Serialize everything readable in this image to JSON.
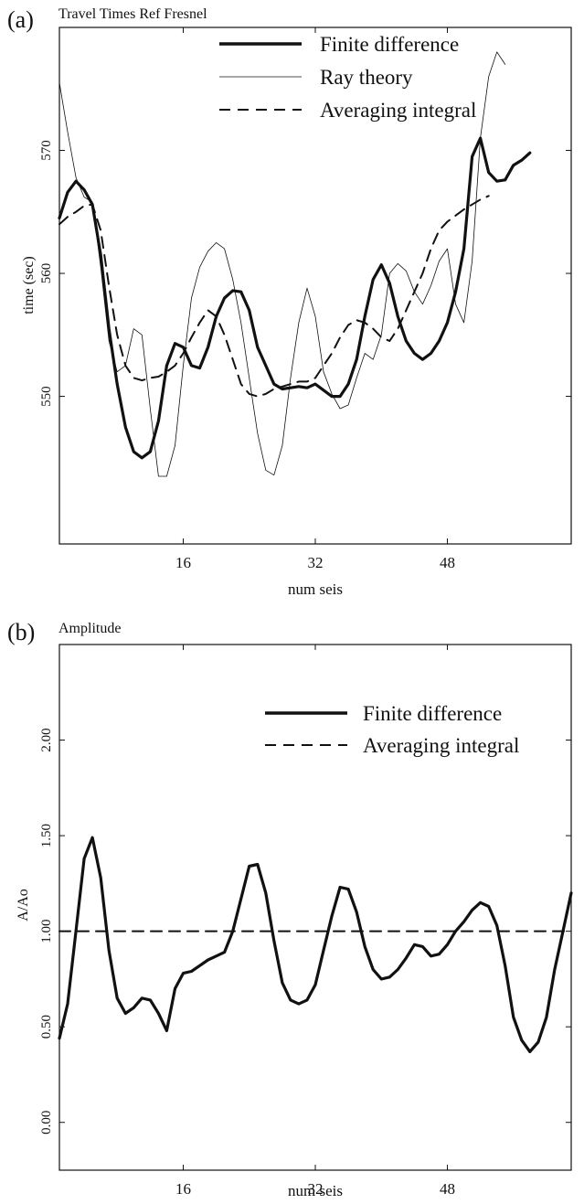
{
  "chart_data": [
    {
      "type": "line",
      "panel_label": "(a)",
      "title": "Travel Times  Ref Fresnel",
      "xlabel": "num seis",
      "ylabel": "time (sec)",
      "xlim": [
        1,
        63
      ],
      "ylim": [
        538,
        580
      ],
      "xticks": [
        16,
        32,
        48
      ],
      "yticks": [
        550,
        560,
        570
      ],
      "legend_position": "top-right",
      "series": [
        {
          "name": "Finite difference",
          "style": "thick-solid",
          "x": [
            1,
            2,
            3,
            4,
            5,
            6,
            7,
            8,
            9,
            10,
            11,
            12,
            13,
            14,
            15,
            16,
            17,
            18,
            19,
            20,
            21,
            22,
            23,
            24,
            25,
            26,
            27,
            28,
            29,
            30,
            31,
            32,
            33,
            34,
            35,
            36,
            37,
            38,
            39,
            40,
            41,
            42,
            43,
            44,
            45,
            46,
            47,
            48,
            49,
            50,
            51,
            52,
            53,
            54,
            55,
            56,
            57,
            58,
            59,
            60,
            61,
            62,
            63
          ],
          "values": [
            564.5,
            566.6,
            567.5,
            566.8,
            565.6,
            561.5,
            555.5,
            551.0,
            547.5,
            545.5,
            545.0,
            545.5,
            548.0,
            552.5,
            554.3,
            554.0,
            552.5,
            552.3,
            554.0,
            556.5,
            558.0,
            558.6,
            558.5,
            557.0,
            554.0,
            552.5,
            551.0,
            550.6,
            550.7,
            550.8,
            550.7,
            551.0,
            550.5,
            550.0,
            550.0,
            551.0,
            553.0,
            556.5,
            559.5,
            560.7,
            559.2,
            556.5,
            554.5,
            553.5,
            553.0,
            553.5,
            554.5,
            556.0,
            558.5,
            562.0,
            569.5,
            571.0,
            568.2,
            567.5,
            567.6,
            568.8,
            569.2,
            569.8,
            null,
            null,
            null,
            null,
            null
          ]
        },
        {
          "name": "Ray theory",
          "style": "thin-solid",
          "x": [
            1,
            2,
            3,
            4,
            5,
            6,
            7,
            8,
            9,
            10,
            11,
            12,
            13,
            14,
            15,
            16,
            17,
            18,
            19,
            20,
            21,
            22,
            23,
            24,
            25,
            26,
            27,
            28,
            29,
            30,
            31,
            32,
            33,
            34,
            35,
            36,
            37,
            38,
            39,
            40,
            41,
            42,
            43,
            44,
            45,
            46,
            47,
            48,
            49,
            50,
            51,
            52,
            53,
            54,
            55,
            56,
            57,
            58,
            59,
            60,
            61,
            62,
            63
          ],
          "values": [
            575.5,
            571.5,
            567.8,
            566.2,
            565.8,
            560.5,
            554.5,
            552.0,
            552.5,
            555.5,
            555.0,
            549.0,
            543.5,
            543.5,
            546.0,
            552.5,
            558.0,
            560.5,
            561.8,
            562.5,
            562.0,
            559.5,
            556.0,
            551.5,
            547.0,
            544.0,
            543.6,
            546.0,
            551.5,
            556.0,
            558.8,
            556.5,
            552.0,
            550.2,
            549.0,
            549.3,
            551.5,
            553.5,
            553.0,
            555.0,
            560.0,
            560.8,
            560.2,
            558.5,
            557.5,
            559.0,
            561.0,
            562.0,
            557.5,
            556.0,
            561.0,
            571.0,
            576.0,
            578.0,
            577.0,
            null,
            null,
            null,
            null,
            null,
            null,
            null,
            null
          ]
        },
        {
          "name": "Averaging integral",
          "style": "dashed",
          "x": [
            1,
            2,
            3,
            4,
            5,
            6,
            7,
            8,
            9,
            10,
            11,
            12,
            13,
            14,
            15,
            16,
            17,
            18,
            19,
            20,
            21,
            22,
            23,
            24,
            25,
            26,
            27,
            28,
            29,
            30,
            31,
            32,
            33,
            34,
            35,
            36,
            37,
            38,
            39,
            40,
            41,
            42,
            43,
            44,
            45,
            46,
            47,
            48,
            49,
            50,
            51,
            52,
            53,
            54,
            55,
            56,
            57,
            58,
            59,
            60,
            61,
            62,
            63
          ],
          "values": [
            564.0,
            564.6,
            565.0,
            565.5,
            565.6,
            563.5,
            559.0,
            555.0,
            552.5,
            551.5,
            551.3,
            551.5,
            551.6,
            552.0,
            552.5,
            553.5,
            554.8,
            556.0,
            557.0,
            556.5,
            555.0,
            553.0,
            551.0,
            550.2,
            550.0,
            550.2,
            550.6,
            550.8,
            551.0,
            551.2,
            551.2,
            551.5,
            552.5,
            553.5,
            554.8,
            555.8,
            556.2,
            556.0,
            555.5,
            554.8,
            554.5,
            555.5,
            557.0,
            558.5,
            560.0,
            562.0,
            563.5,
            564.2,
            564.7,
            565.2,
            565.6,
            566.0,
            566.3,
            null,
            null,
            null,
            null,
            null,
            null,
            null,
            null,
            null,
            null
          ]
        }
      ]
    },
    {
      "type": "line",
      "panel_label": "(b)",
      "title": "Amplitude",
      "xlabel": "num seis",
      "ylabel": "A/Ao",
      "xlim": [
        1,
        63
      ],
      "ylim": [
        -0.25,
        2.5
      ],
      "xticks": [
        16,
        32,
        48
      ],
      "yticks": [
        "0.00",
        "0.50",
        "1.00",
        "1.50",
        "2.00"
      ],
      "legend_position": "top-right",
      "series": [
        {
          "name": "Finite difference",
          "style": "thick-solid",
          "x": [
            1,
            2,
            3,
            4,
            5,
            6,
            7,
            8,
            9,
            10,
            11,
            12,
            13,
            14,
            15,
            16,
            17,
            18,
            19,
            20,
            21,
            22,
            23,
            24,
            25,
            26,
            27,
            28,
            29,
            30,
            31,
            32,
            33,
            34,
            35,
            36,
            37,
            38,
            39,
            40,
            41,
            42,
            43,
            44,
            45,
            46,
            47,
            48,
            49,
            50,
            51,
            52,
            53,
            54,
            55,
            56,
            57,
            58,
            59,
            60,
            61,
            62,
            63
          ],
          "values": [
            0.44,
            0.62,
            1.0,
            1.38,
            1.49,
            1.28,
            0.9,
            0.65,
            0.57,
            0.6,
            0.65,
            0.64,
            0.57,
            0.48,
            0.7,
            0.78,
            0.79,
            0.82,
            0.85,
            0.87,
            0.89,
            1.0,
            1.17,
            1.34,
            1.35,
            1.2,
            0.95,
            0.73,
            0.64,
            0.62,
            0.64,
            0.72,
            0.9,
            1.08,
            1.23,
            1.22,
            1.1,
            0.92,
            0.8,
            0.75,
            0.76,
            0.8,
            0.86,
            0.93,
            0.92,
            0.87,
            0.88,
            0.93,
            1.0,
            1.05,
            1.11,
            1.15,
            1.13,
            1.03,
            0.82,
            0.55,
            0.43,
            0.37,
            0.42,
            0.55,
            0.8,
            1.0,
            1.2
          ]
        },
        {
          "name": "Averaging integral",
          "style": "dashed",
          "x": [
            1,
            63
          ],
          "values": [
            1.0,
            1.0
          ]
        }
      ]
    }
  ]
}
